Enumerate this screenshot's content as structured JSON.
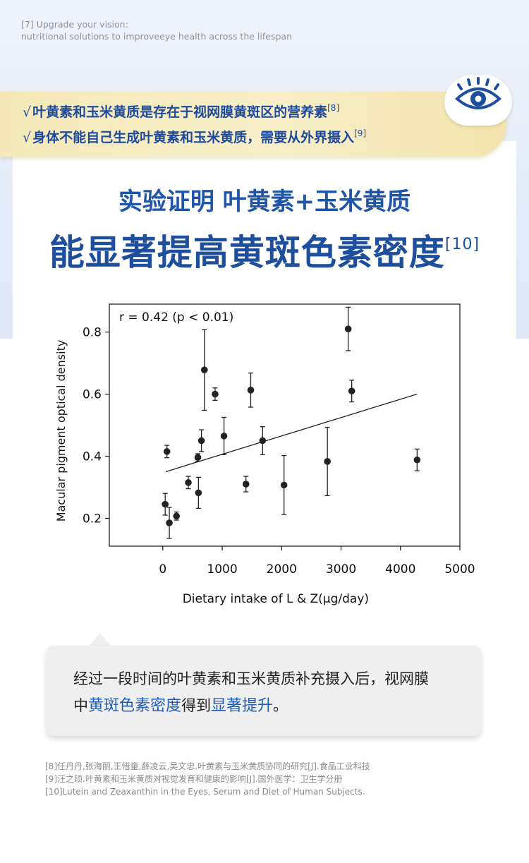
{
  "header": {
    "line1": "[7] Upgrade your vision:",
    "line2": "nutritional solutions to improveeye health across the lifespan"
  },
  "banner": {
    "check": "√",
    "item1": "叶黄素和玉米黄质是存在于视网膜黄斑区的营养素",
    "item1_ref": "[8]",
    "item2": "身体不能自己生成叶黄素和玉米黄质，需要从外界摄入",
    "item2_ref": "[9]",
    "icon": "eye-icon"
  },
  "headline": {
    "line1": "实验证明 叶黄素+玉米黄质",
    "line2": "能显著提高黄斑色素密度",
    "line2_ref": "[10]",
    "color": "#1d4f9e"
  },
  "chart_data": {
    "type": "scatter",
    "annotation": "r = 0.42 (p < 0.01)",
    "xlabel": "Dietary intake of L & Z(μg/day)",
    "ylabel": "Macular pigment optical density",
    "xlim": [
      -900,
      5000
    ],
    "ylim": [
      0.11,
      0.89
    ],
    "xticks": [
      0,
      1000,
      2000,
      3000,
      4000,
      5000
    ],
    "yticks": [
      0.2,
      0.4,
      0.6,
      0.8
    ],
    "xtick_labels": [
      "0",
      "1000",
      "2000",
      "3000",
      "4000",
      "5000"
    ],
    "ytick_labels": [
      "0.2",
      "0.4",
      "0.6",
      "0.8"
    ],
    "points": [
      {
        "x": 40,
        "y": 0.245,
        "err": 0.035
      },
      {
        "x": 70,
        "y": 0.415,
        "err": 0.02
      },
      {
        "x": 110,
        "y": 0.185,
        "err": 0.05
      },
      {
        "x": 230,
        "y": 0.207,
        "err": 0.013
      },
      {
        "x": 430,
        "y": 0.315,
        "err": 0.02
      },
      {
        "x": 590,
        "y": 0.396,
        "err": 0.012
      },
      {
        "x": 600,
        "y": 0.282,
        "err": 0.05
      },
      {
        "x": 650,
        "y": 0.45,
        "err": 0.035
      },
      {
        "x": 700,
        "y": 0.678,
        "err": 0.13
      },
      {
        "x": 880,
        "y": 0.6,
        "err": 0.02
      },
      {
        "x": 1030,
        "y": 0.465,
        "err": 0.06
      },
      {
        "x": 1400,
        "y": 0.31,
        "err": 0.025
      },
      {
        "x": 1480,
        "y": 0.613,
        "err": 0.055
      },
      {
        "x": 1680,
        "y": 0.45,
        "err": 0.045
      },
      {
        "x": 2040,
        "y": 0.307,
        "err": 0.095
      },
      {
        "x": 2770,
        "y": 0.383,
        "err": 0.11
      },
      {
        "x": 3120,
        "y": 0.81,
        "err": 0.07
      },
      {
        "x": 3180,
        "y": 0.61,
        "err": 0.035
      },
      {
        "x": 4280,
        "y": 0.388,
        "err": 0.035
      }
    ],
    "trendline": {
      "x": [
        50,
        4280
      ],
      "y": [
        0.35,
        0.6
      ]
    },
    "grid": false,
    "legend": "none"
  },
  "callout": {
    "text_a": "经过一段时间的叶黄素和玉米黄质补充摄入后，视网膜",
    "text_b": "中",
    "highlight1": "黄斑色素密度",
    "text_c": "得到",
    "highlight2": "显著提升",
    "text_d": "。",
    "highlight_color": "#1e5cb8"
  },
  "references": [
    "[8]任丹丹,张海丽,王惜童,薛凌云,吴文忠.叶黄素与玉米黄质协同的研究[J].食品工业科技",
    "[9]汪之顼.叶黄素和玉米黄质对视觉发育和健康的影响[J].国外医学：卫生学分册",
    "[10]Lutein and Zeaxanthin in the Eyes, Serum and Diet of Human Subjects."
  ]
}
